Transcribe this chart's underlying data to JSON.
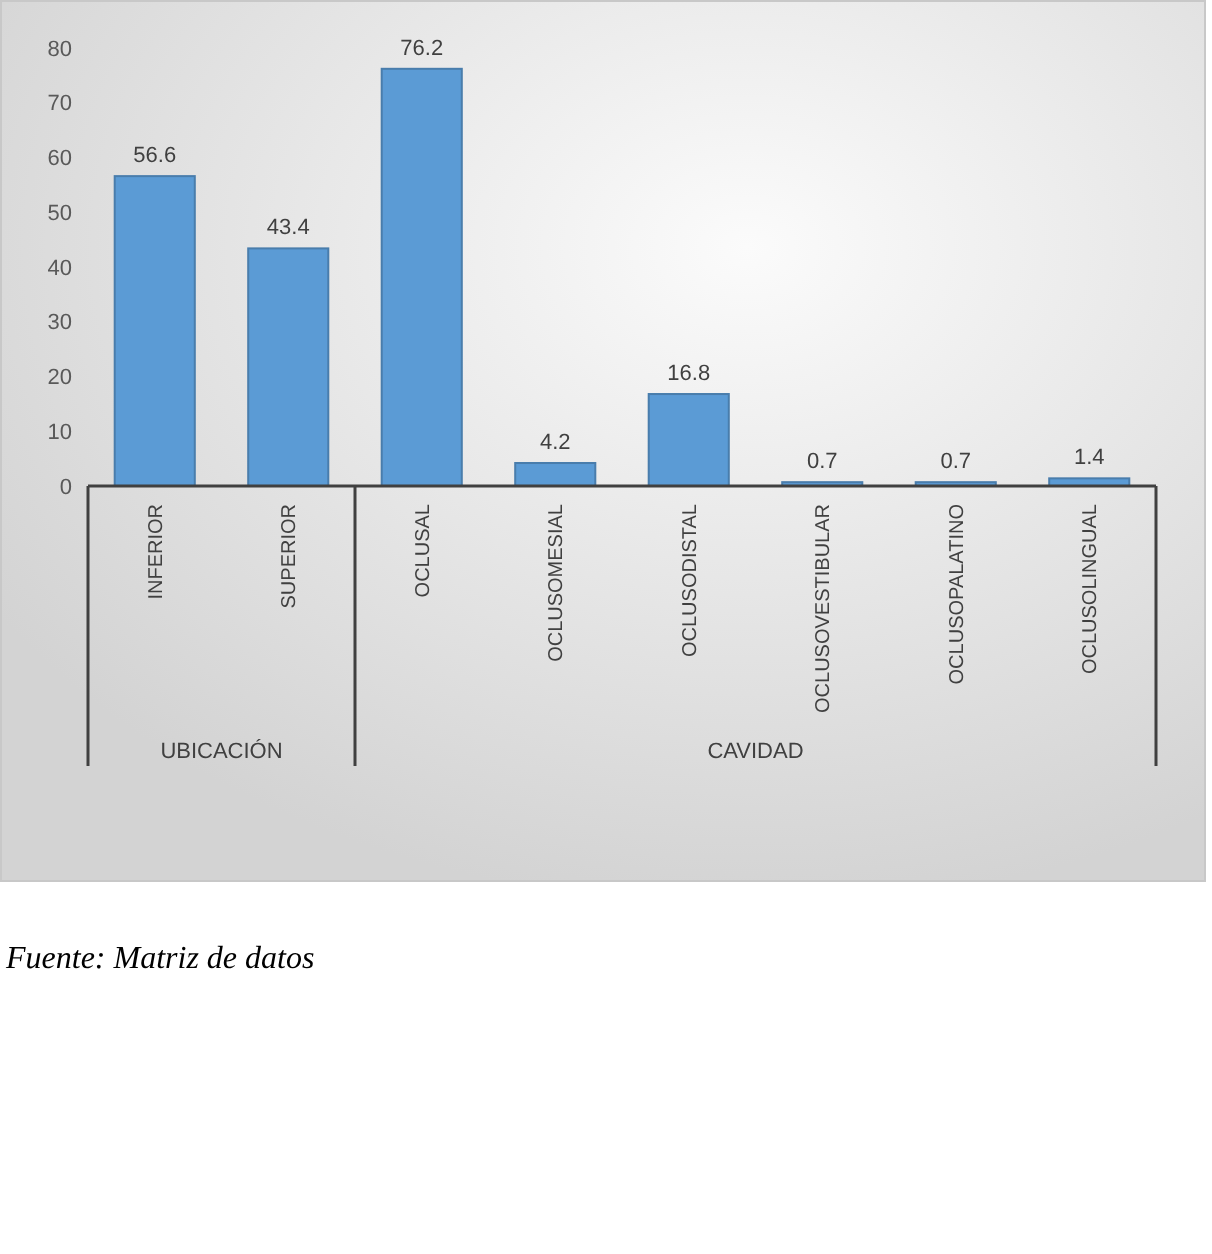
{
  "chart_data": {
    "type": "bar",
    "categories": [
      "INFERIOR",
      "SUPERIOR",
      "OCLUSAL",
      "OCLUSOMESIAL",
      "OCLUSODISTAL",
      "OCLUSOVESTIBULAR",
      "OCLUSOPALATINO",
      "OCLUSOLINGUAL"
    ],
    "values": [
      56.6,
      43.4,
      76.2,
      4.2,
      16.8,
      0.7,
      0.7,
      1.4
    ],
    "color": "#5b9bd5",
    "ylim": [
      0,
      80
    ],
    "yticks": [
      0,
      10,
      20,
      30,
      40,
      50,
      60,
      70,
      80
    ],
    "data_labels": true,
    "annotations": [
      "UBICACIÓN",
      "CAVIDAD",
      "Fuente: Matriz de datos"
    ]
  }
}
